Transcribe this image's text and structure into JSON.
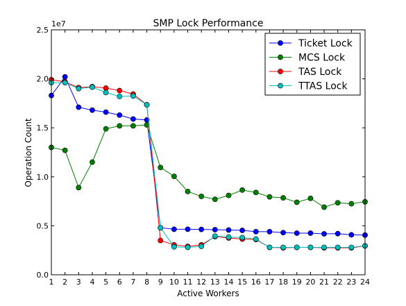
{
  "chart_data": {
    "type": "line",
    "title": "SMP Lock Performance",
    "xlabel": "Active Workers",
    "ylabel": "Operation Count",
    "y_offset_label": "1e7",
    "xlim": [
      1,
      24
    ],
    "ylim": [
      0,
      25000000
    ],
    "x": [
      1,
      2,
      3,
      4,
      5,
      6,
      7,
      8,
      9,
      10,
      11,
      12,
      13,
      14,
      15,
      16,
      17,
      18,
      19,
      20,
      21,
      22,
      23,
      24
    ],
    "x_tick_labels": [
      "1",
      "2",
      "3",
      "4",
      "5",
      "6",
      "7",
      "8",
      "9",
      "10",
      "11",
      "12",
      "13",
      "14",
      "15",
      "16",
      "17",
      "18",
      "19",
      "20",
      "21",
      "22",
      "23",
      "24"
    ],
    "y_ticks": [
      0,
      5000000,
      10000000,
      15000000,
      20000000,
      25000000
    ],
    "y_tick_labels": [
      "0.0",
      "0.5",
      "1.0",
      "1.5",
      "2.0",
      "2.5"
    ],
    "grid": false,
    "legend_position": "top-right",
    "series": [
      {
        "name": "Ticket Lock",
        "color": "#0000ff",
        "values": [
          18300000,
          20200000,
          17100000,
          16800000,
          16600000,
          16300000,
          15900000,
          15800000,
          4800000,
          4650000,
          4650000,
          4630000,
          4600000,
          4570000,
          4530000,
          4400000,
          4400000,
          4300000,
          4250000,
          4250000,
          4180000,
          4200000,
          4080000,
          4050000
        ]
      },
      {
        "name": "MCS Lock",
        "color": "#008000",
        "values": [
          13000000,
          12700000,
          8900000,
          11500000,
          14900000,
          15200000,
          15200000,
          15300000,
          10950000,
          10050000,
          8500000,
          8000000,
          7700000,
          8100000,
          8650000,
          8400000,
          7950000,
          7850000,
          7400000,
          7800000,
          6900000,
          7350000,
          7250000,
          7450000
        ]
      },
      {
        "name": "TAS Lock",
        "color": "#ff0000",
        "values": [
          19900000,
          19700000,
          19100000,
          19200000,
          19050000,
          18800000,
          18450000,
          17350000,
          3500000,
          3050000,
          2900000,
          3050000,
          3900000,
          3750000,
          3650000,
          3600000,
          2800000,
          2750000,
          2800000,
          2800000,
          2750000,
          2750000,
          2750000,
          2950000
        ]
      },
      {
        "name": "TTAS Lock",
        "color": "#00bfbf",
        "values": [
          19600000,
          19600000,
          19000000,
          19150000,
          18600000,
          18200000,
          18250000,
          17350000,
          4800000,
          2850000,
          2800000,
          2900000,
          3950000,
          3850000,
          3800000,
          3650000,
          2800000,
          2800000,
          2800000,
          2800000,
          2800000,
          2800000,
          2800000,
          2950000
        ]
      }
    ]
  }
}
